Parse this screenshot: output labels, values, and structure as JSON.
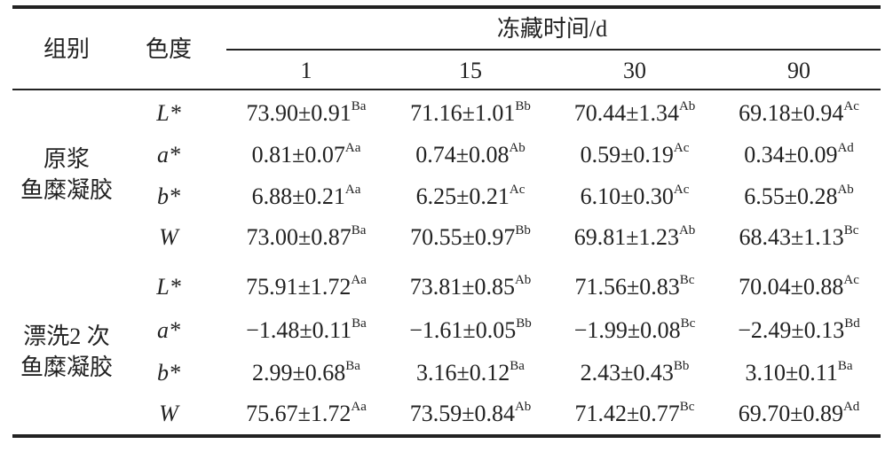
{
  "header": {
    "group": "组别",
    "color": "色度",
    "time": "冻藏时间/d",
    "days": [
      "1",
      "15",
      "30",
      "90"
    ]
  },
  "groups": [
    {
      "label": [
        "原浆",
        "鱼糜凝胶"
      ],
      "rows": [
        {
          "metric": "L*",
          "cells": [
            {
              "value": "73.90±0.91",
              "sup": "Ba"
            },
            {
              "value": "71.16±1.01",
              "sup": "Bb"
            },
            {
              "value": "70.44±1.34",
              "sup": "Ab"
            },
            {
              "value": "69.18±0.94",
              "sup": "Ac"
            }
          ]
        },
        {
          "metric": "a*",
          "cells": [
            {
              "value": "0.81±0.07",
              "sup": "Aa"
            },
            {
              "value": "0.74±0.08",
              "sup": "Ab"
            },
            {
              "value": "0.59±0.19",
              "sup": "Ac"
            },
            {
              "value": "0.34±0.09",
              "sup": "Ad"
            }
          ]
        },
        {
          "metric": "b*",
          "cells": [
            {
              "value": "6.88±0.21",
              "sup": "Aa"
            },
            {
              "value": "6.25±0.21",
              "sup": "Ac"
            },
            {
              "value": "6.10±0.30",
              "sup": "Ac"
            },
            {
              "value": "6.55±0.28",
              "sup": "Ab"
            }
          ]
        },
        {
          "metric": "W",
          "cells": [
            {
              "value": "73.00±0.87",
              "sup": "Ba"
            },
            {
              "value": "70.55±0.97",
              "sup": "Bb"
            },
            {
              "value": "69.81±1.23",
              "sup": "Ab"
            },
            {
              "value": "68.43±1.13",
              "sup": "Bc"
            }
          ]
        }
      ]
    },
    {
      "label": [
        "漂洗2 次",
        "鱼糜凝胶"
      ],
      "rows": [
        {
          "metric": "L*",
          "cells": [
            {
              "value": "75.91±1.72",
              "sup": "Aa"
            },
            {
              "value": "73.81±0.85",
              "sup": "Ab"
            },
            {
              "value": "71.56±0.83",
              "sup": "Bc"
            },
            {
              "value": "70.04±0.88",
              "sup": "Ac"
            }
          ]
        },
        {
          "metric": "a*",
          "cells": [
            {
              "value": "−1.48±0.11",
              "sup": "Ba"
            },
            {
              "value": "−1.61±0.05",
              "sup": "Bb"
            },
            {
              "value": "−1.99±0.08",
              "sup": "Bc"
            },
            {
              "value": "−2.49±0.13",
              "sup": "Bd"
            }
          ]
        },
        {
          "metric": "b*",
          "cells": [
            {
              "value": "2.99±0.68",
              "sup": "Ba"
            },
            {
              "value": "3.16±0.12",
              "sup": "Ba"
            },
            {
              "value": "2.43±0.43",
              "sup": "Bb"
            },
            {
              "value": "3.10±0.11",
              "sup": "Ba"
            }
          ]
        },
        {
          "metric": "W",
          "cells": [
            {
              "value": "75.67±1.72",
              "sup": "Aa"
            },
            {
              "value": "73.59±0.84",
              "sup": "Ab"
            },
            {
              "value": "71.42±0.77",
              "sup": "Bc"
            },
            {
              "value": "69.70±0.89",
              "sup": "Ad"
            }
          ]
        }
      ]
    }
  ]
}
